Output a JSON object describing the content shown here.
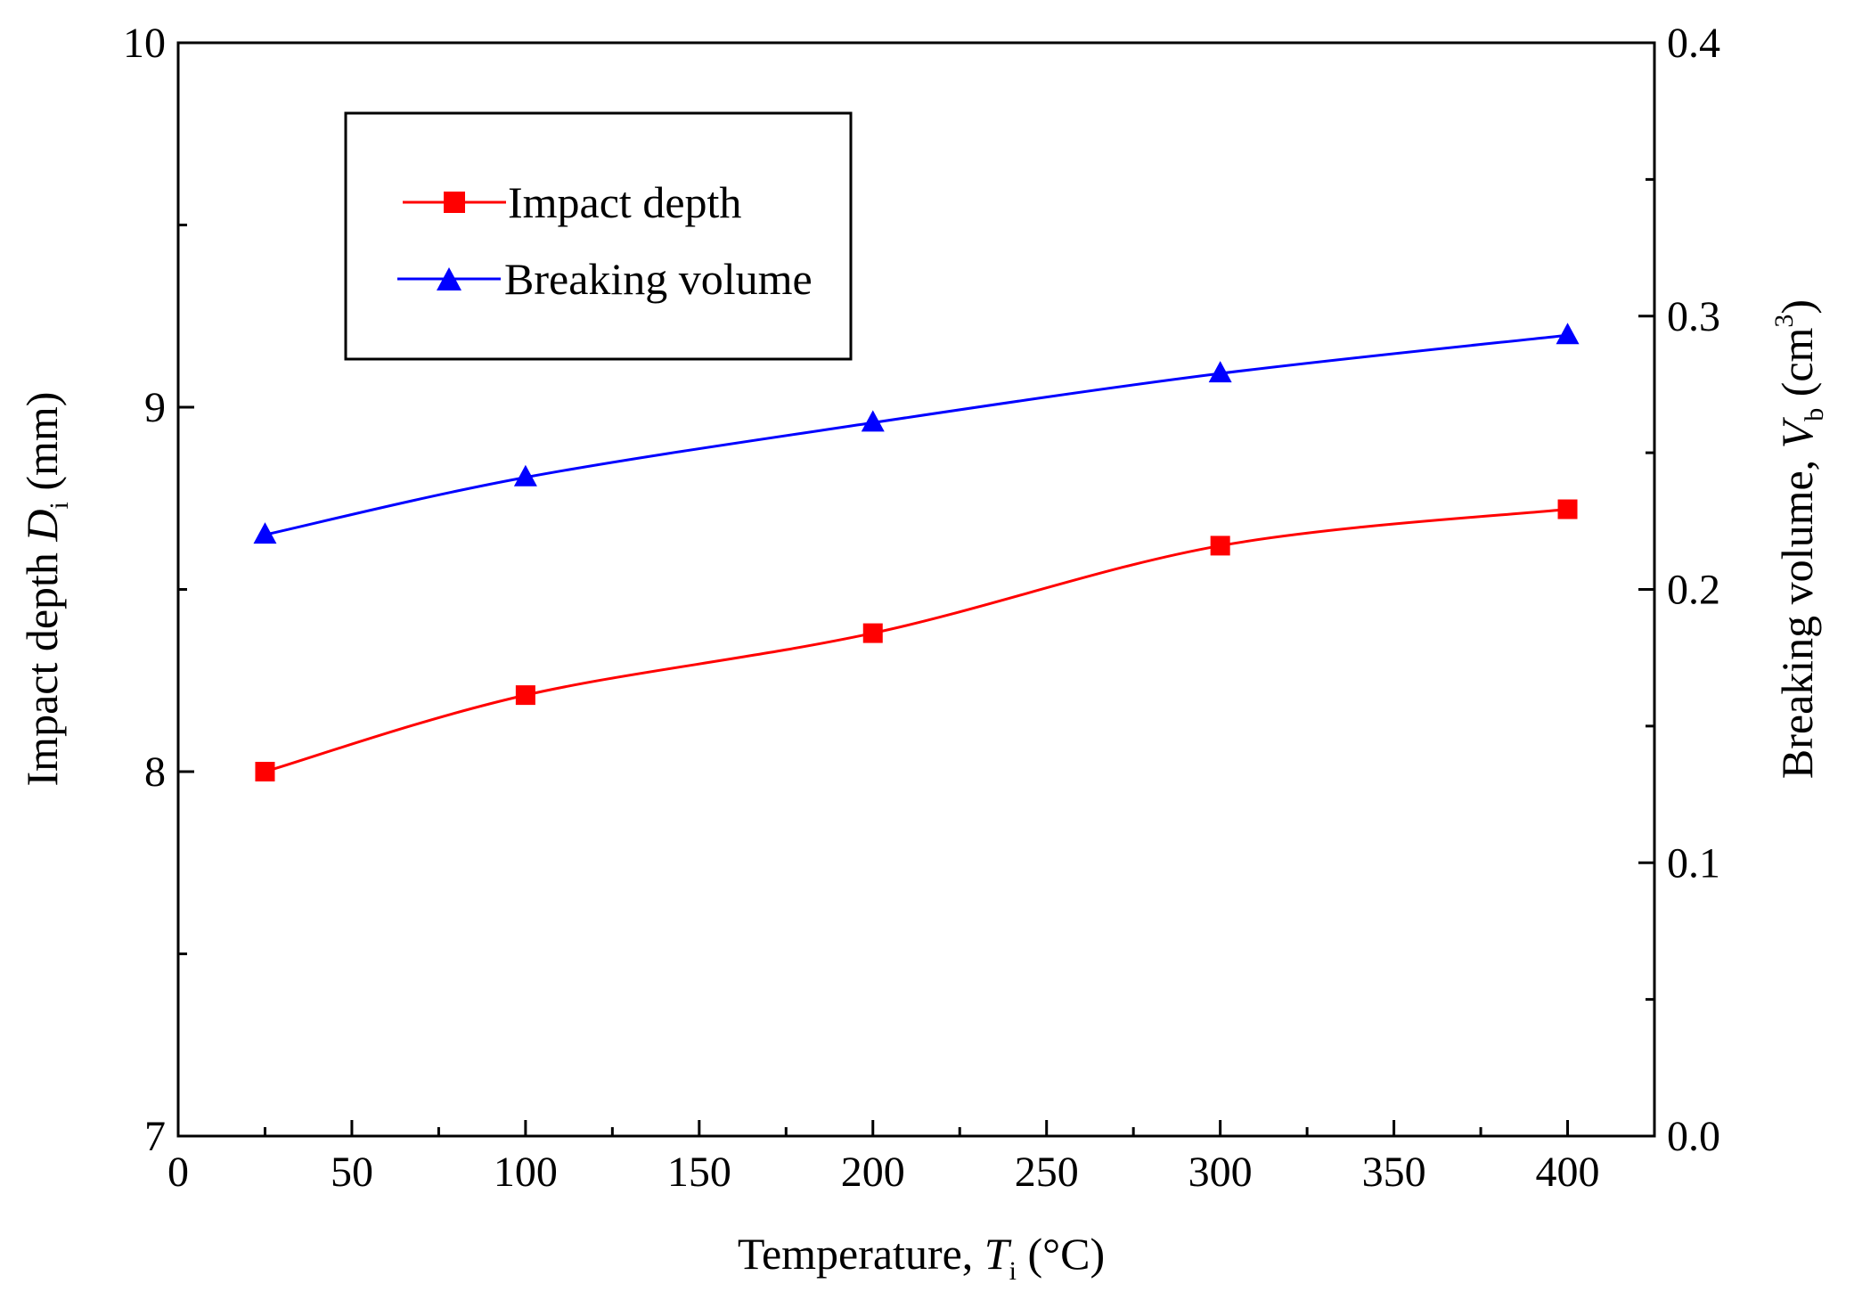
{
  "chart_data": {
    "type": "line",
    "title": "",
    "x": [
      25,
      100,
      200,
      300,
      400
    ],
    "xlim": [
      0,
      425
    ],
    "x_ticks": [
      0,
      50,
      100,
      150,
      200,
      250,
      300,
      350,
      400
    ],
    "x_minor_ticks": [
      25,
      75,
      125,
      175,
      225,
      275,
      325,
      375
    ],
    "xlabel": {
      "text": "Temperature, ",
      "var": "T",
      "sub": "i",
      "unit": " (°C)"
    },
    "ylabel_left": {
      "text": "Impact depth ",
      "var": "D",
      "sub": "i",
      "unit": "  (mm)"
    },
    "ylabel_right": {
      "text": "Breaking volume, ",
      "var": "V",
      "sub": "b",
      "unit_pre": " (cm",
      "sup": "3",
      "unit_post": ")"
    },
    "ylim_left": [
      7,
      10
    ],
    "y_left_ticks": [
      "7",
      "8",
      "9",
      "10"
    ],
    "y_left_minor": [
      7.5,
      8.5,
      9.5
    ],
    "ylim_right": [
      0.0,
      0.4
    ],
    "y_right_ticks": [
      "0.0",
      "0.1",
      "0.2",
      "0.3",
      "0.4"
    ],
    "y_right_minor": [
      0.05,
      0.15,
      0.25,
      0.35
    ],
    "legend_position": "top-left",
    "series": [
      {
        "name": "Impact depth",
        "axis": "left",
        "color": "#ff0000",
        "marker": "square",
        "values": [
          8.0,
          8.21,
          8.38,
          8.62,
          8.72
        ]
      },
      {
        "name": "Breaking volume",
        "axis": "right",
        "color": "#0000ff",
        "marker": "triangle",
        "values": [
          0.22,
          0.241,
          0.261,
          0.279,
          0.293
        ]
      }
    ]
  }
}
